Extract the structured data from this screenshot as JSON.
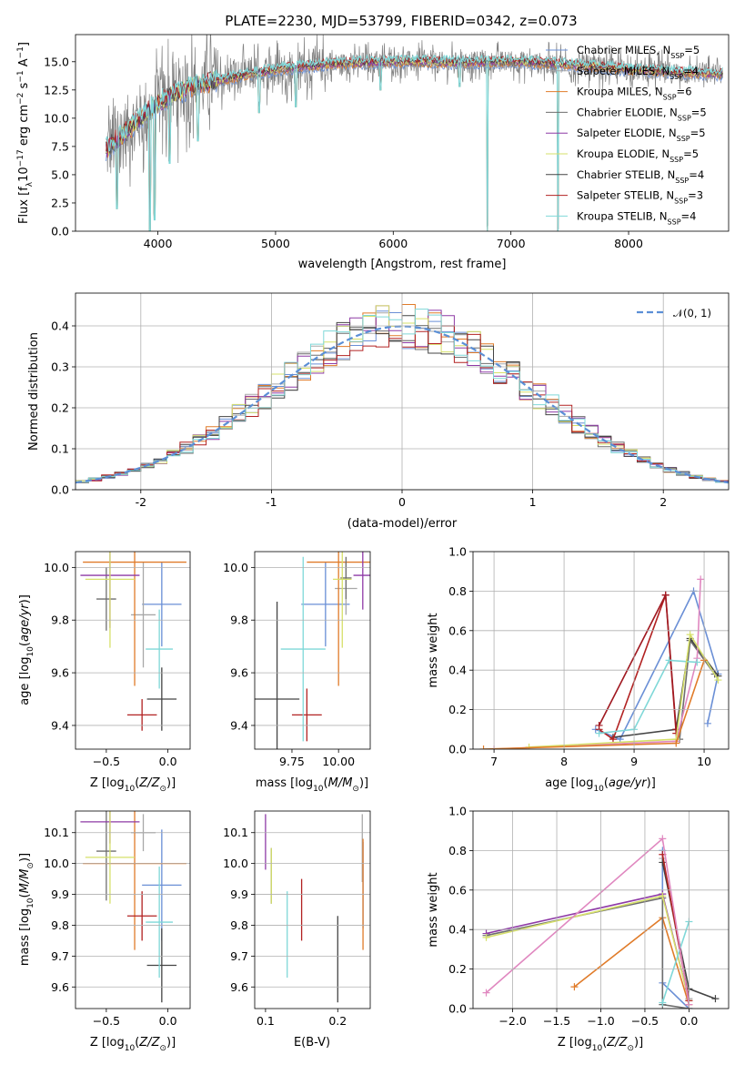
{
  "figure": {
    "title": "PLATE=2230, MJD=53799, FIBERID=0342, z=0.073"
  },
  "models": [
    {
      "name": "Chabrier MILES",
      "nssp": "5",
      "color": "#6a8fd6"
    },
    {
      "name": "Salpeter MILES",
      "nssp": "4",
      "color": "#a8a8a8"
    },
    {
      "name": "Kroupa MILES",
      "nssp": "6",
      "color": "#e07b29"
    },
    {
      "name": "Chabrier ELODIE",
      "nssp": "5",
      "color": "#6e6e6e"
    },
    {
      "name": "Salpeter ELODIE",
      "nssp": "5",
      "color": "#8e3aa6"
    },
    {
      "name": "Kroupa ELODIE",
      "nssp": "5",
      "color": "#d6e06a"
    },
    {
      "name": "Chabrier STELIB",
      "nssp": "4",
      "color": "#444444"
    },
    {
      "name": "Salpeter STELIB",
      "nssp": "3",
      "color": "#b22222"
    },
    {
      "name": "Kroupa STELIB",
      "nssp": "4",
      "color": "#7fd8d8"
    }
  ],
  "chart_data": [
    {
      "type": "line",
      "panel": "spectrum",
      "xlabel": "wavelength [Angstrom, rest frame]",
      "ylabel": "Flux [f_λ 10^-17 erg cm^-2 s^-1 A^-1]",
      "xlim": [
        3300,
        8850
      ],
      "ylim": [
        0,
        17.4
      ],
      "xticks": [
        4000,
        5000,
        6000,
        7000,
        8000
      ],
      "yticks": [
        0.0,
        2.5,
        5.0,
        7.5,
        10.0,
        12.5,
        15.0
      ],
      "data_color": "#808080",
      "continuum": [
        [
          3560,
          7.2
        ],
        [
          3700,
          8.5
        ],
        [
          3900,
          10.5
        ],
        [
          4100,
          12.0
        ],
        [
          4300,
          12.8
        ],
        [
          4500,
          13.3
        ],
        [
          5000,
          14.3
        ],
        [
          5500,
          14.8
        ],
        [
          6000,
          15.0
        ],
        [
          6500,
          14.9
        ],
        [
          7000,
          15.0
        ],
        [
          7500,
          14.7
        ],
        [
          8000,
          14.3
        ],
        [
          8500,
          14.0
        ],
        [
          8800,
          13.9
        ]
      ],
      "dips": [
        [
          3650,
          2.0
        ],
        [
          3934,
          0.0
        ],
        [
          3969,
          1.0
        ],
        [
          4102,
          6.0
        ],
        [
          4340,
          8.0
        ],
        [
          4861,
          10.5
        ],
        [
          5175,
          11.0
        ],
        [
          5890,
          12.5
        ],
        [
          6563,
          12.8
        ],
        [
          6800,
          0.0
        ],
        [
          7400,
          0.0
        ]
      ],
      "grid": false,
      "legend_position": "upper right"
    },
    {
      "type": "bar",
      "panel": "residual-histogram",
      "xlabel": "(data-model)/error",
      "ylabel": "Normed distribution",
      "xlim": [
        -2.5,
        2.5
      ],
      "ylim": [
        0,
        0.48
      ],
      "xticks": [
        -2,
        -1,
        0,
        1,
        2
      ],
      "yticks": [
        0.0,
        0.1,
        0.2,
        0.3,
        0.4
      ],
      "bin_width": 0.1,
      "reference_curve": "gaussian mean 0, sigma 1",
      "reference_label": "𝒩(0, 1)",
      "reference_color": "#5b8fd6",
      "grid": true,
      "legend_position": "upper right"
    },
    {
      "type": "scatter",
      "panel": "age-vs-metallicity",
      "xlabel": "Z [log10(Z/Z☉)]",
      "ylabel": "age [log10(age/yr)]",
      "xlim": [
        -0.75,
        0.18
      ],
      "ylim": [
        9.31,
        10.06
      ],
      "xticks": [
        -0.5,
        0.0
      ],
      "yticks": [
        9.4,
        9.6,
        9.8,
        10.0
      ],
      "points": [
        {
          "x": -0.05,
          "xerr": 0.16,
          "y": 9.86,
          "yerr": 0.16
        },
        {
          "x": -0.2,
          "xerr": 0.1,
          "y": 9.82,
          "yerr": 0.2
        },
        {
          "x": -0.27,
          "xerr": 0.42,
          "y": 10.02,
          "yerr": 0.47
        },
        {
          "x": -0.5,
          "xerr": 0.08,
          "y": 9.88,
          "yerr": 0.12
        },
        {
          "x": -0.47,
          "xerr": 0.24,
          "y": 9.97,
          "yerr": 0.2
        },
        {
          "x": -0.47,
          "xerr": 0.2,
          "y": 9.955,
          "yerr": 0.26
        },
        {
          "x": -0.05,
          "xerr": 0.12,
          "y": 9.5,
          "yerr": 0.12
        },
        {
          "x": -0.21,
          "xerr": 0.12,
          "y": 9.44,
          "yerr": 0.06
        },
        {
          "x": -0.07,
          "xerr": 0.11,
          "y": 9.69,
          "yerr": 0.15
        }
      ]
    },
    {
      "type": "scatter",
      "panel": "age-vs-mass",
      "xlabel": "mass [log10(M/M☉)]",
      "ylabel": "",
      "xlim": [
        9.55,
        10.17
      ],
      "ylim": [
        9.31,
        10.06
      ],
      "xticks": [
        9.75,
        10.0
      ],
      "yticks": [
        9.4,
        9.6,
        9.8,
        10.0
      ],
      "points": [
        {
          "x": 9.93,
          "xerr": 0.13,
          "y": 9.86,
          "yerr": 0.16
        },
        {
          "x": 10.04,
          "xerr": 0.06,
          "y": 9.92,
          "yerr": 0.1
        },
        {
          "x": 10.0,
          "xerr": 0.17,
          "y": 10.02,
          "yerr": 0.47
        },
        {
          "x": 10.04,
          "xerr": 0.03,
          "y": 9.96,
          "yerr": 0.08
        },
        {
          "x": 10.13,
          "xerr": 0.05,
          "y": 9.97,
          "yerr": 0.13
        },
        {
          "x": 10.02,
          "xerr": 0.05,
          "y": 9.955,
          "yerr": 0.26
        },
        {
          "x": 9.67,
          "xerr": 0.12,
          "y": 9.5,
          "yerr": 0.37
        },
        {
          "x": 9.83,
          "xerr": 0.08,
          "y": 9.44,
          "yerr": 0.1
        },
        {
          "x": 9.81,
          "xerr": 0.12,
          "y": 9.69,
          "yerr": 0.35
        }
      ]
    },
    {
      "type": "line",
      "panel": "mass-weight-vs-age",
      "xlabel": "age [log10(age/yr)]",
      "ylabel": "mass weight",
      "xlim": [
        6.7,
        10.35
      ],
      "ylim": [
        0,
        1.0
      ],
      "xticks": [
        7,
        8,
        9,
        10
      ],
      "yticks": [
        0.0,
        0.2,
        0.4,
        0.6,
        0.8,
        1.0
      ],
      "grid": true,
      "series": [
        {
          "values": [
            [
              8.45,
              0.1
            ],
            [
              8.8,
              0.05
            ],
            [
              9.85,
              0.8
            ],
            [
              10.2,
              0.38
            ],
            [
              10.05,
              0.13
            ]
          ]
        },
        {
          "values": [
            [
              9.65,
              0.05
            ],
            [
              9.8,
              0.55
            ],
            [
              10.15,
              0.38
            ]
          ]
        },
        {
          "values": [
            [
              8.7,
              0.06
            ],
            [
              9.6,
              0.1
            ],
            [
              9.8,
              0.56
            ],
            [
              10.2,
              0.37
            ]
          ]
        },
        {
          "values": [
            [
              8.5,
              0.1
            ],
            [
              8.7,
              0.05
            ],
            [
              9.45,
              0.78
            ],
            [
              9.6,
              0.08
            ]
          ]
        },
        {
          "values": [
            [
              8.5,
              0.12
            ],
            [
              9.45,
              0.78
            ],
            [
              9.6,
              0.1
            ]
          ]
        },
        {
          "values": [
            [
              7.0,
              0.0
            ],
            [
              9.6,
              0.04
            ],
            [
              9.9,
              0.46
            ],
            [
              9.95,
              0.86
            ]
          ]
        },
        {
          "values": [
            [
              8.5,
              0.08
            ],
            [
              9.0,
              0.1
            ],
            [
              9.5,
              0.45
            ],
            [
              9.9,
              0.44
            ]
          ]
        },
        {
          "values": [
            [
              7.5,
              0.01
            ],
            [
              9.6,
              0.05
            ],
            [
              9.8,
              0.58
            ],
            [
              10.2,
              0.35
            ]
          ]
        },
        {
          "values": [
            [
              6.85,
              0.0
            ],
            [
              9.6,
              0.03
            ],
            [
              10.0,
              0.45
            ]
          ]
        }
      ]
    },
    {
      "type": "scatter",
      "panel": "mass-vs-metallicity",
      "xlabel": "Z [log10(Z/Z☉)]",
      "ylabel": "mass [log10(M/M☉)]",
      "xlim": [
        -0.75,
        0.18
      ],
      "ylim": [
        9.53,
        10.17
      ],
      "xticks": [
        -0.5,
        0.0
      ],
      "yticks": [
        9.6,
        9.7,
        9.8,
        9.9,
        10.0,
        10.1
      ],
      "points": [
        {
          "x": -0.05,
          "xerr": 0.16,
          "y": 9.93,
          "yerr": 0.18
        },
        {
          "x": -0.2,
          "xerr": 0.1,
          "y": 10.1,
          "yerr": 0.06
        },
        {
          "x": -0.27,
          "xerr": 0.42,
          "y": 10.0,
          "yerr": 0.28
        },
        {
          "x": -0.5,
          "xerr": 0.08,
          "y": 10.04,
          "yerr": 0.16
        },
        {
          "x": -0.47,
          "xerr": 0.24,
          "y": 10.135,
          "yerr": 0.07
        },
        {
          "x": -0.47,
          "xerr": 0.2,
          "y": 10.02,
          "yerr": 0.15
        },
        {
          "x": -0.05,
          "xerr": 0.12,
          "y": 9.67,
          "yerr": 0.12
        },
        {
          "x": -0.21,
          "xerr": 0.12,
          "y": 9.83,
          "yerr": 0.08
        },
        {
          "x": -0.07,
          "xerr": 0.11,
          "y": 9.81,
          "yerr": 0.18
        }
      ]
    },
    {
      "type": "scatter",
      "panel": "mass-vs-ebv",
      "xlabel": "E(B-V)",
      "ylabel": "",
      "xlim": [
        0.085,
        0.245
      ],
      "ylim": [
        9.53,
        10.17
      ],
      "xticks": [
        0.1,
        0.2
      ],
      "yticks": [
        9.6,
        9.7,
        9.8,
        9.9,
        10.0,
        10.1
      ],
      "points": [
        {
          "x": 0.235,
          "y": 9.93,
          "yerr": 0.14
        },
        {
          "x": 0.234,
          "y": 10.05,
          "yerr": 0.11
        },
        {
          "x": 0.235,
          "y": 9.9,
          "yerr": 0.18
        },
        {
          "x": 0.108,
          "y": 9.96,
          "yerr": 0.09
        },
        {
          "x": 0.1,
          "y": 10.07,
          "yerr": 0.09
        },
        {
          "x": 0.108,
          "y": 9.96,
          "yerr": 0.09
        },
        {
          "x": 0.2,
          "y": 9.69,
          "yerr": 0.14
        },
        {
          "x": 0.15,
          "y": 9.85,
          "yerr": 0.1
        },
        {
          "x": 0.13,
          "y": 9.77,
          "yerr": 0.14
        }
      ]
    },
    {
      "type": "line",
      "panel": "mass-weight-vs-metallicity",
      "xlabel": "Z [log10(Z/Z☉)]",
      "ylabel": "mass weight",
      "xlim": [
        -2.45,
        0.45
      ],
      "ylim": [
        0,
        1.0
      ],
      "xticks": [
        -2.0,
        -1.5,
        -1.0,
        -0.5,
        0.0
      ],
      "yticks": [
        0.0,
        0.2,
        0.4,
        0.6,
        0.8,
        1.0
      ],
      "grid": true,
      "series": [
        {
          "values": [
            [
              -0.3,
              0.8
            ],
            [
              -0.3,
              0.13
            ],
            [
              0.0,
              0.0
            ]
          ]
        },
        {
          "values": [
            [
              -0.3,
              0.76
            ],
            [
              0.0,
              0.05
            ]
          ]
        },
        {
          "values": [
            [
              -1.3,
              0.11
            ],
            [
              -0.3,
              0.46
            ],
            [
              0.0,
              0.02
            ]
          ]
        },
        {
          "values": [
            [
              -2.3,
              0.37
            ],
            [
              -0.3,
              0.56
            ],
            [
              -0.3,
              0.02
            ],
            [
              0.0,
              0.0
            ]
          ]
        },
        {
          "values": [
            [
              -2.3,
              0.38
            ],
            [
              -0.3,
              0.58
            ],
            [
              0.0,
              0.04
            ]
          ]
        },
        {
          "values": [
            [
              -2.3,
              0.36
            ],
            [
              -0.3,
              0.57
            ],
            [
              0.0,
              0.04
            ]
          ]
        },
        {
          "values": [
            [
              -0.3,
              0.74
            ],
            [
              0.0,
              0.1
            ],
            [
              0.3,
              0.05
            ]
          ]
        },
        {
          "values": [
            [
              -0.3,
              0.78
            ],
            [
              0.0,
              0.04
            ]
          ]
        },
        {
          "values": [
            [
              -0.3,
              0.03
            ],
            [
              0.0,
              0.44
            ]
          ]
        },
        {
          "values": [
            [
              -2.3,
              0.08
            ],
            [
              -0.3,
              0.86
            ],
            [
              0.0,
              0.02
            ]
          ]
        }
      ]
    }
  ]
}
